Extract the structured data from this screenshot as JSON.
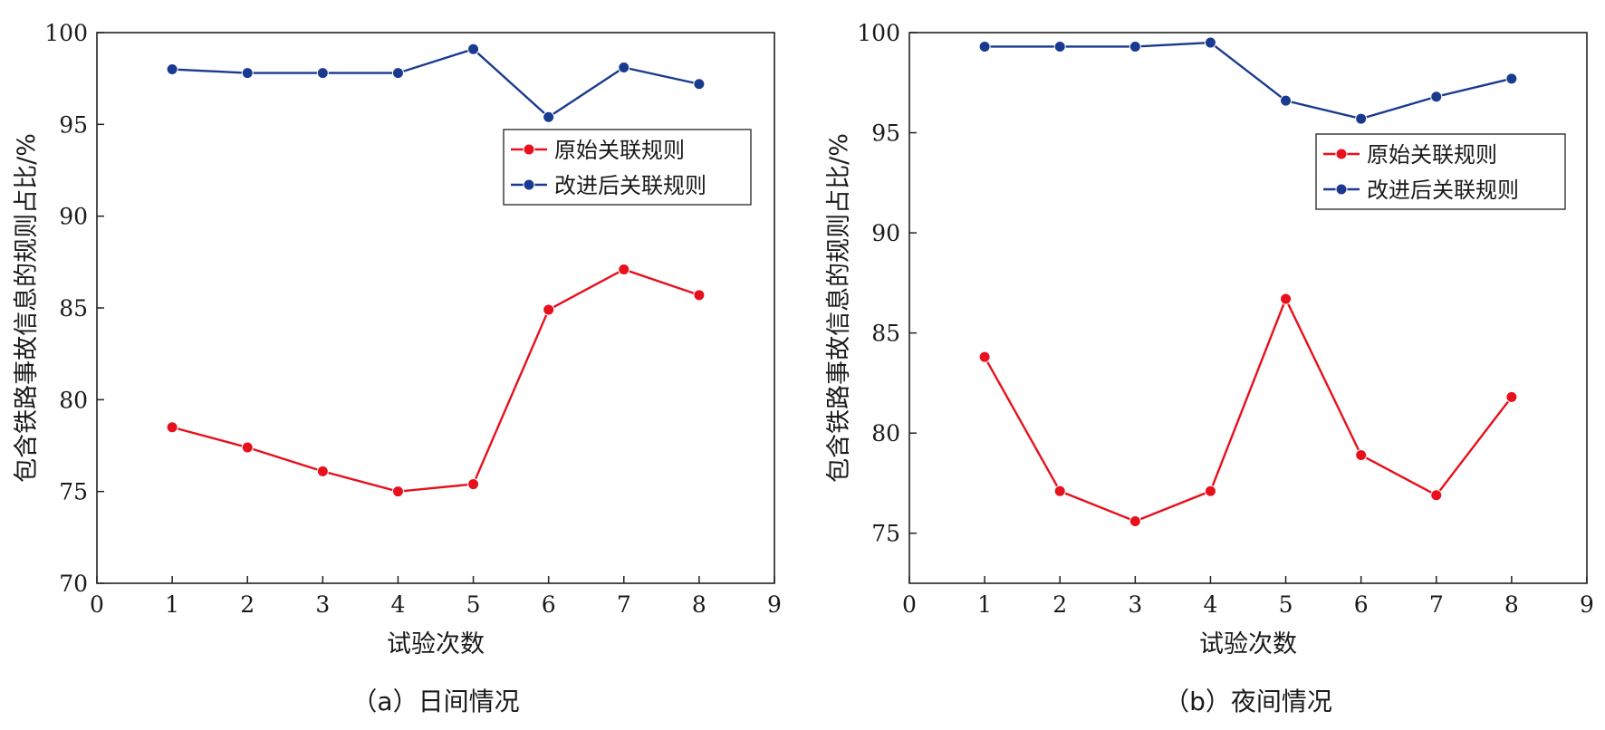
{
  "chart_data": [
    {
      "type": "line",
      "caption": "（a）日间情况",
      "xlabel": "试验次数",
      "ylabel": "包含铁路事故信息的规则占比/%",
      "xlim": [
        0,
        9
      ],
      "ylim": [
        70,
        100
      ],
      "xticks": [
        0,
        1,
        2,
        3,
        4,
        5,
        6,
        7,
        8,
        9
      ],
      "yticks": [
        70,
        75,
        80,
        85,
        90,
        95,
        100
      ],
      "x": [
        1,
        2,
        3,
        4,
        5,
        6,
        7,
        8
      ],
      "legend_position": "right",
      "series": [
        {
          "name": "原始关联规则",
          "color": "#e8101c",
          "values": [
            78.5,
            77.4,
            76.1,
            75.0,
            75.4,
            84.9,
            87.1,
            85.7
          ]
        },
        {
          "name": "改进后关联规则",
          "color": "#1a3a8f",
          "values": [
            98.0,
            97.8,
            97.8,
            97.8,
            99.1,
            95.4,
            98.1,
            97.2
          ]
        }
      ]
    },
    {
      "type": "line",
      "caption": "（b）夜间情况",
      "xlabel": "试验次数",
      "ylabel": "包含铁路事故信息的规则占比/%",
      "xlim": [
        0,
        9
      ],
      "ylim": [
        72.5,
        100
      ],
      "xticks": [
        0,
        1,
        2,
        3,
        4,
        5,
        6,
        7,
        8,
        9
      ],
      "yticks": [
        75,
        80,
        85,
        90,
        95,
        100
      ],
      "x": [
        1,
        2,
        3,
        4,
        5,
        6,
        7,
        8
      ],
      "legend_position": "right",
      "series": [
        {
          "name": "原始关联规则",
          "color": "#e8101c",
          "values": [
            83.8,
            77.1,
            75.6,
            77.1,
            86.7,
            78.9,
            76.9,
            81.8
          ]
        },
        {
          "name": "改进后关联规则",
          "color": "#1a3a8f",
          "values": [
            99.3,
            99.3,
            99.3,
            99.5,
            96.6,
            95.7,
            96.8,
            97.7
          ]
        }
      ]
    }
  ]
}
